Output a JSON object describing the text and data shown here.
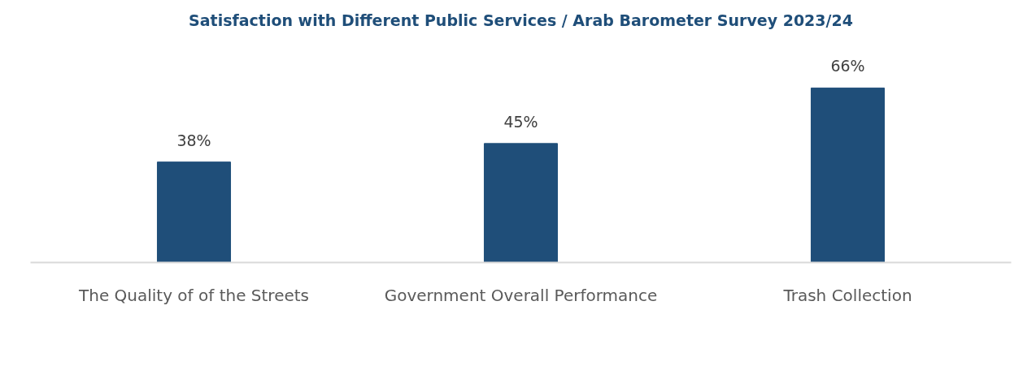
{
  "chart_data": {
    "type": "bar",
    "title": "Satisfaction with Different Public Services / Arab Barometer Survey 2023/24",
    "categories": [
      "The Quality of of the Streets",
      "Government Overall Performance",
      "Trash Collection"
    ],
    "values": [
      38,
      45,
      66
    ],
    "value_labels": [
      "38%",
      "45%",
      "66%"
    ],
    "color": "#1f4e79",
    "grid": false
  }
}
